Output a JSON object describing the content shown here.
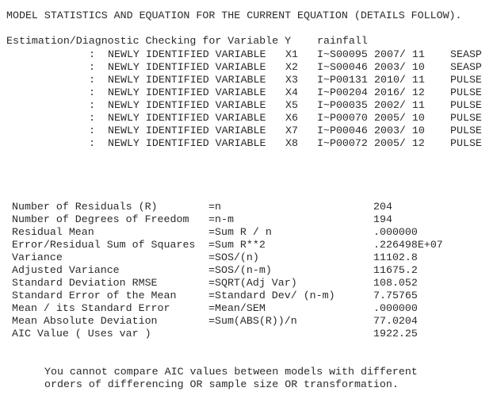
{
  "title": "MODEL STATISTICS AND EQUATION FOR THE CURRENT EQUATION (DETAILS FOLLOW).",
  "header": {
    "label": "Estimation/Diagnostic Checking for Variable Y",
    "variable": "rainfall"
  },
  "variables": [
    {
      "sep": ":",
      "desc": "NEWLY IDENTIFIED VARIABLE",
      "name": "X1",
      "id": "I~S00095",
      "date": "2007/ 11",
      "type": "SEASP"
    },
    {
      "sep": ":",
      "desc": "NEWLY IDENTIFIED VARIABLE",
      "name": "X2",
      "id": "I~S00046",
      "date": "2003/ 10",
      "type": "SEASP"
    },
    {
      "sep": ":",
      "desc": "NEWLY IDENTIFIED VARIABLE",
      "name": "X3",
      "id": "I~P00131",
      "date": "2010/ 11",
      "type": "PULSE"
    },
    {
      "sep": ":",
      "desc": "NEWLY IDENTIFIED VARIABLE",
      "name": "X4",
      "id": "I~P00204",
      "date": "2016/ 12",
      "type": "PULSE"
    },
    {
      "sep": ":",
      "desc": "NEWLY IDENTIFIED VARIABLE",
      "name": "X5",
      "id": "I~P00035",
      "date": "2002/ 11",
      "type": "PULSE"
    },
    {
      "sep": ":",
      "desc": "NEWLY IDENTIFIED VARIABLE",
      "name": "X6",
      "id": "I~P00070",
      "date": "2005/ 10",
      "type": "PULSE"
    },
    {
      "sep": ":",
      "desc": "NEWLY IDENTIFIED VARIABLE",
      "name": "X7",
      "id": "I~P00046",
      "date": "2003/ 10",
      "type": "PULSE"
    },
    {
      "sep": ":",
      "desc": "NEWLY IDENTIFIED VARIABLE",
      "name": "X8",
      "id": "I~P00072",
      "date": "2005/ 12",
      "type": "PULSE"
    }
  ],
  "statistics": [
    {
      "label": "Number of Residuals (R)",
      "formula": "=n",
      "value": "204"
    },
    {
      "label": "Number of Degrees of Freedom",
      "formula": "=n-m",
      "value": "194"
    },
    {
      "label": "Residual Mean",
      "formula": "=Sum R / n",
      "value": ".000000"
    },
    {
      "label": "Error/Residual Sum of Squares",
      "formula": "=Sum R**2",
      "value": ".226498E+07"
    },
    {
      "label": "Variance",
      "formula": "=SOS/(n)",
      "value": "11102.8"
    },
    {
      "label": "Adjusted Variance",
      "formula": "=SOS/(n-m)",
      "value": "11675.2"
    },
    {
      "label": "Standard Deviation RMSE",
      "formula": "=SQRT(Adj Var)",
      "value": "108.052"
    },
    {
      "label": "Standard Error of the Mean",
      "formula": "=Standard Dev/ (n-m)",
      "value": "7.75765"
    },
    {
      "label": "Mean / its Standard Error",
      "formula": "=Mean/SEM",
      "value": ".000000"
    },
    {
      "label": "Mean Absolute Deviation",
      "formula": "=Sum(ABS(R))/n",
      "value": "77.0204"
    },
    {
      "label": "AIC Value ( Uses var )",
      "formula": "",
      "value": "1922.25"
    }
  ],
  "footer": [
    "You cannot compare AIC values between models with different",
    "orders of differencing OR sample size OR transformation."
  ]
}
